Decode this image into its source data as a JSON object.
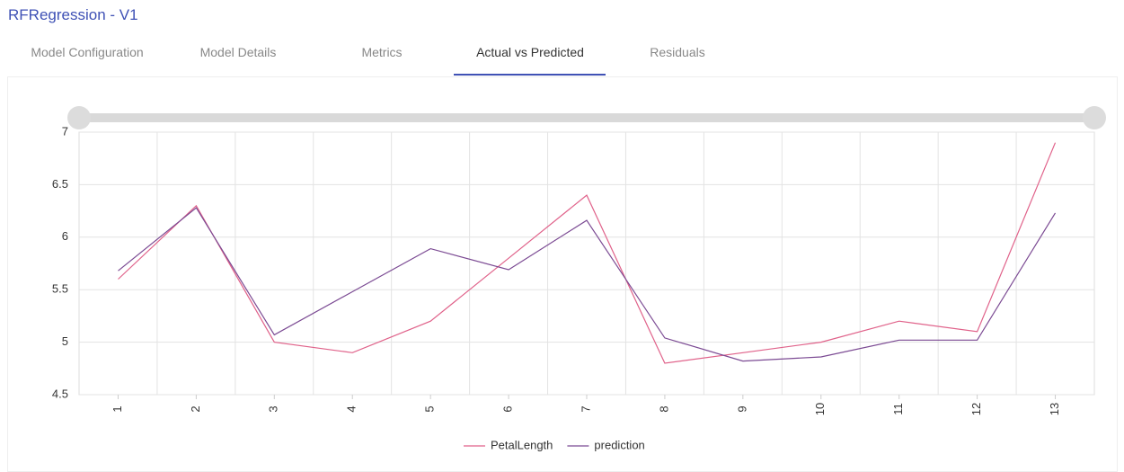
{
  "header": {
    "title": "RFRegression - V1"
  },
  "tabs": [
    "Model Configuration",
    "Model Details",
    "Metrics",
    "Actual vs Predicted",
    "Residuals"
  ],
  "chart_data": {
    "type": "line",
    "categories": [
      "1",
      "2",
      "3",
      "4",
      "5",
      "6",
      "7",
      "8",
      "9",
      "10",
      "11",
      "12",
      "13"
    ],
    "series": [
      {
        "name": "PetalLength",
        "color": "#e0628a",
        "values": [
          5.6,
          6.3,
          5.0,
          4.9,
          5.2,
          5.8,
          6.4,
          4.8,
          4.9,
          5.0,
          5.2,
          5.1,
          6.9
        ]
      },
      {
        "name": "prediction",
        "color": "#7b4a93",
        "values": [
          5.68,
          6.28,
          5.07,
          5.48,
          5.89,
          5.69,
          6.16,
          5.04,
          4.82,
          4.86,
          5.02,
          5.02,
          6.23
        ]
      }
    ],
    "ylim": [
      4.5,
      7
    ],
    "yticks": [
      4.5,
      5,
      5.5,
      6,
      6.5,
      7
    ],
    "grid": true,
    "legend": "bottom"
  }
}
